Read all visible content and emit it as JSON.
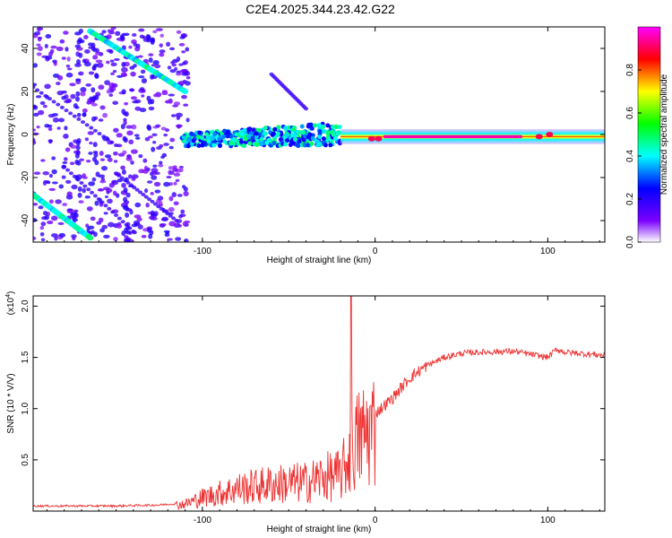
{
  "title": "C2E4.2025.344.23.42.G22",
  "chart_data": [
    {
      "type": "heatmap",
      "xlabel": "Height of straight line (km)",
      "ylabel": "Frequency (Hz)",
      "xlim": [
        -198,
        133
      ],
      "ylim": [
        -50,
        50
      ],
      "xticks": [
        -100,
        0,
        100
      ],
      "yticks": [
        -40,
        -20,
        0,
        20,
        40
      ],
      "xtick_labels": [
        "-100",
        "0",
        "100"
      ],
      "ytick_labels": [
        "-40",
        "-20",
        "0",
        "20",
        "40"
      ],
      "colorbar": {
        "label": "Normalized spectral amplitude",
        "range": [
          0,
          1
        ],
        "ticks": [
          0.0,
          0.2,
          0.4,
          0.6,
          0.8
        ],
        "tick_labels": [
          "0.0",
          "0.2",
          "0.4",
          "0.6",
          "0.8"
        ],
        "colors": [
          "#ffffff",
          "#7a00ff",
          "#0000ff",
          "#00ffff",
          "#00ff00",
          "#ffff00",
          "#ff0000",
          "#ff00ff"
        ]
      },
      "features": [
        {
          "name": "main-carrier",
          "x_range": [
            -110,
            133
          ],
          "freq": -1,
          "amplitude": 0.95
        },
        {
          "name": "upper-diagonal",
          "x_start": -165,
          "f_start": 48,
          "x_end": -110,
          "f_end": 20,
          "amplitude": 0.5
        },
        {
          "name": "lower-diagonal",
          "x_start": -198,
          "f_start": -28,
          "x_end": -165,
          "f_end": -48,
          "amplitude": 0.5
        }
      ]
    },
    {
      "type": "line",
      "xlabel": "Height of straight line (km)",
      "ylabel": "SNR (10 * V/V)",
      "yscale_label": "(x10",
      "yscale_exp": "4",
      "yscale_close": ")",
      "xlim": [
        -198,
        133
      ],
      "ylim": [
        0,
        2.1
      ],
      "xticks": [
        -100,
        0,
        100
      ],
      "yticks": [
        0.5,
        1.0,
        1.5,
        2.0
      ],
      "xtick_labels": [
        "-100",
        "0",
        "100"
      ],
      "ytick_labels": [
        "0.5",
        "1.0",
        "1.5",
        "2.0"
      ],
      "color": "#ee3333",
      "series": [
        {
          "name": "SNR",
          "x": [
            -198,
            -150,
            -125,
            -110,
            -100,
            -80,
            -60,
            -40,
            -30,
            -20,
            -15,
            -10,
            0,
            10,
            20,
            30,
            40,
            50,
            60,
            80,
            100,
            105,
            110,
            133
          ],
          "values": [
            0.05,
            0.05,
            0.06,
            0.08,
            0.15,
            0.25,
            0.3,
            0.32,
            0.38,
            0.4,
            0.6,
            0.8,
            0.95,
            1.1,
            1.3,
            1.42,
            1.5,
            1.54,
            1.55,
            1.56,
            1.5,
            1.58,
            1.55,
            1.52
          ]
        }
      ]
    }
  ]
}
